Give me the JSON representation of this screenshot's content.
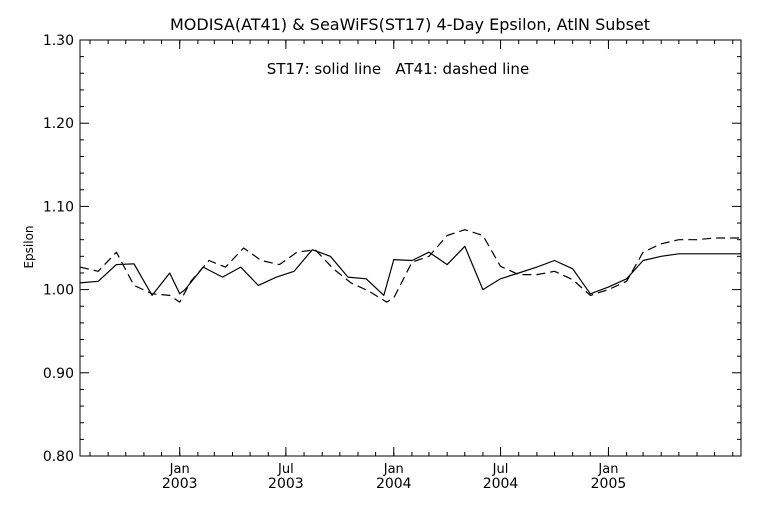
{
  "chart_data": {
    "type": "line",
    "title": "MODISA(AT41) & SeaWiFS(ST17) 4-Day Epsilon, AtlN Subset",
    "annotation": "ST17: solid line   AT41: dashed line",
    "ylabel": "Epsilon",
    "xlabel": "",
    "ylim": [
      0.8,
      1.3
    ],
    "y_ticks": [
      "0.80",
      "0.90",
      "1.00",
      "1.10",
      "1.20",
      "1.30"
    ],
    "xlim": [
      "2002-07-15",
      "2005-08-15"
    ],
    "x_ticks": [
      {
        "date": "2003-01-01",
        "month": "Jan",
        "year": "2003"
      },
      {
        "date": "2003-07-01",
        "month": "Jul",
        "year": "2003"
      },
      {
        "date": "2004-01-01",
        "month": "Jan",
        "year": "2004"
      },
      {
        "date": "2004-07-01",
        "month": "Jul",
        "year": "2004"
      },
      {
        "date": "2005-01-01",
        "month": "Jan",
        "year": "2005"
      }
    ],
    "grid": false,
    "colors": {
      "line": "#000000",
      "background": "#ffffff"
    },
    "series": [
      {
        "name": "ST17",
        "style": "solid",
        "x": [
          "2002-07-15",
          "2002-08-15",
          "2002-09-15",
          "2002-10-15",
          "2002-11-15",
          "2002-12-15",
          "2003-01-01",
          "2003-01-10",
          "2003-02-10",
          "2003-03-15",
          "2003-04-15",
          "2003-05-15",
          "2003-06-15",
          "2003-07-15",
          "2003-08-15",
          "2003-09-15",
          "2003-10-15",
          "2003-11-15",
          "2003-12-15",
          "2004-01-01",
          "2004-02-01",
          "2004-03-01",
          "2004-04-01",
          "2004-05-01",
          "2004-06-01",
          "2004-07-01",
          "2004-08-01",
          "2004-09-01",
          "2004-10-01",
          "2004-11-01",
          "2004-12-01",
          "2005-01-01",
          "2005-02-01",
          "2005-03-01",
          "2005-04-01",
          "2005-05-01",
          "2005-06-01",
          "2005-07-01",
          "2005-08-15"
        ],
        "y": [
          1.008,
          1.01,
          1.03,
          1.031,
          0.993,
          1.02,
          0.995,
          1.0,
          1.027,
          1.015,
          1.027,
          1.005,
          1.015,
          1.022,
          1.048,
          1.04,
          1.015,
          1.013,
          0.993,
          1.036,
          1.035,
          1.045,
          1.03,
          1.052,
          1.0,
          1.013,
          1.02,
          1.027,
          1.035,
          1.025,
          0.995,
          1.003,
          1.013,
          1.035,
          1.04,
          1.043,
          1.043,
          1.043,
          1.043
        ]
      },
      {
        "name": "AT41",
        "style": "dashed",
        "x": [
          "2002-07-15",
          "2002-08-15",
          "2002-09-15",
          "2002-10-15",
          "2002-11-15",
          "2002-12-15",
          "2003-01-01",
          "2003-01-20",
          "2003-02-20",
          "2003-03-20",
          "2003-04-20",
          "2003-05-20",
          "2003-06-20",
          "2003-07-20",
          "2003-08-20",
          "2003-09-20",
          "2003-10-20",
          "2003-11-20",
          "2003-12-20",
          "2004-01-01",
          "2004-02-01",
          "2004-03-01",
          "2004-04-01",
          "2004-05-01",
          "2004-06-01",
          "2004-07-01",
          "2004-08-01",
          "2004-09-01",
          "2004-10-01",
          "2004-11-01",
          "2004-12-01",
          "2005-01-01",
          "2005-02-01",
          "2005-03-01",
          "2005-04-01",
          "2005-05-01",
          "2005-06-01",
          "2005-07-01",
          "2005-08-15"
        ],
        "y": [
          1.027,
          1.022,
          1.045,
          1.005,
          0.995,
          0.993,
          0.985,
          1.01,
          1.035,
          1.027,
          1.05,
          1.035,
          1.03,
          1.045,
          1.048,
          1.025,
          1.008,
          0.998,
          0.985,
          0.99,
          1.033,
          1.04,
          1.065,
          1.072,
          1.065,
          1.028,
          1.018,
          1.018,
          1.022,
          1.012,
          0.993,
          1.0,
          1.01,
          1.045,
          1.055,
          1.06,
          1.06,
          1.062,
          1.062
        ]
      }
    ]
  }
}
